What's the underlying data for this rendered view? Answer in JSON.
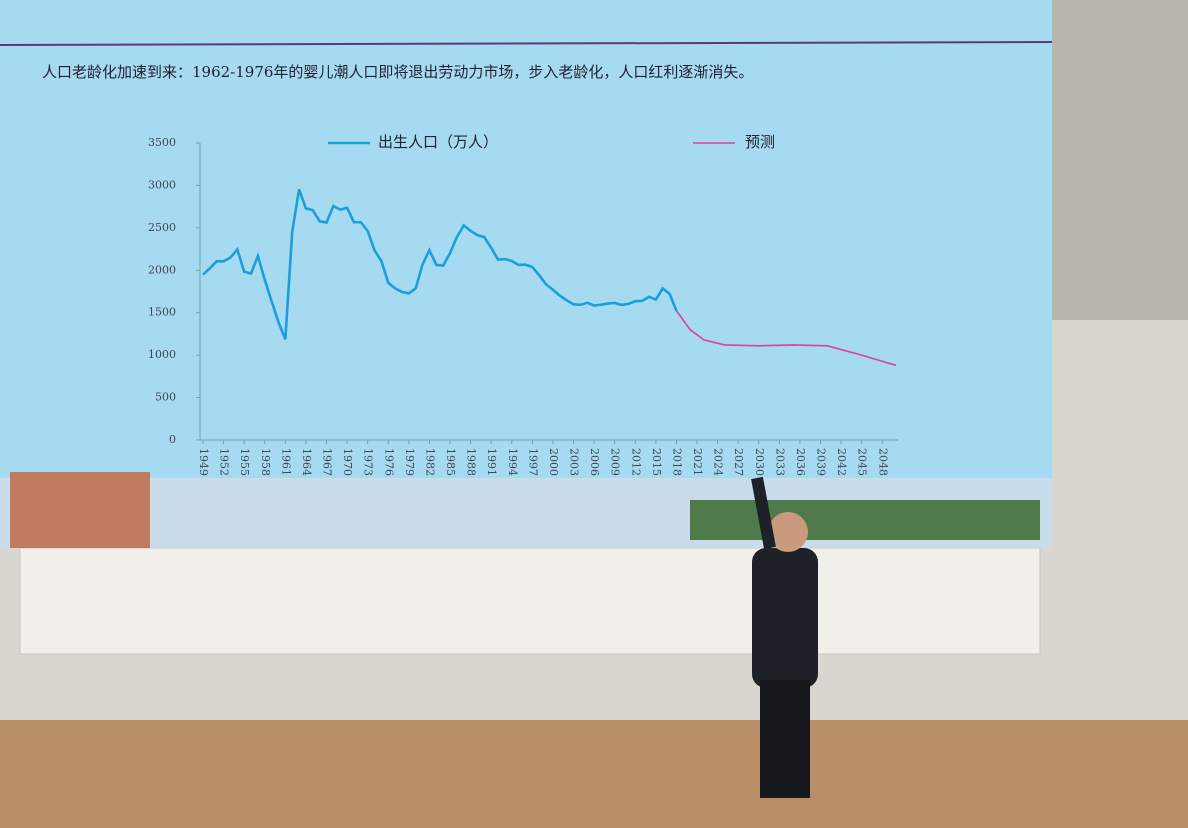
{
  "chart_data": {
    "type": "line",
    "title": "人口老龄化加速到来：1962-1976年的婴儿潮人口即将退出劳动力市场，步入老龄化，人口红利逐渐消失。",
    "xlim": [
      1949,
      2050
    ],
    "xticks": [
      1949,
      1952,
      1955,
      1958,
      1961,
      1964,
      1967,
      1970,
      1973,
      1976,
      1979,
      1982,
      1985,
      1988,
      1991,
      1994,
      1997,
      2000,
      2003,
      2006,
      2009,
      2012,
      2015,
      2018,
      2021,
      2024,
      2027,
      2030,
      2033,
      2036,
      2039,
      2042,
      2045,
      2048
    ],
    "ylim": [
      0,
      3500
    ],
    "yticks": [
      0,
      500,
      1000,
      1500,
      2000,
      2500,
      3000,
      3500
    ],
    "legend": "top",
    "series": [
      {
        "name": "出生人口（万人）",
        "color": "#1a9fdc",
        "x": [
          1949,
          1950,
          1951,
          1952,
          1953,
          1954,
          1955,
          1956,
          1957,
          1958,
          1959,
          1960,
          1961,
          1962,
          1963,
          1964,
          1965,
          1966,
          1967,
          1968,
          1969,
          1970,
          1971,
          1972,
          1973,
          1974,
          1975,
          1976,
          1977,
          1978,
          1979,
          1980,
          1981,
          1982,
          1983,
          1984,
          1985,
          1986,
          1987,
          1988,
          1989,
          1990,
          1991,
          1992,
          1993,
          1994,
          1995,
          1996,
          1997,
          1998,
          1999,
          2000,
          2001,
          2002,
          2003,
          2004,
          2005,
          2006,
          2007,
          2008,
          2009,
          2010,
          2011,
          2012,
          2013,
          2014,
          2015,
          2016,
          2017,
          2018
        ],
        "values": [
          1950,
          2023,
          2107,
          2105,
          2151,
          2245,
          1984,
          1961,
          2169,
          1889,
          1635,
          1389,
          1187,
          2451,
          2954,
          2729,
          2709,
          2577,
          2563,
          2757,
          2715,
          2736,
          2567,
          2566,
          2463,
          2235,
          2109,
          1853,
          1786,
          1745,
          1727,
          1787,
          2069,
          2237,
          2064,
          2055,
          2202,
          2391,
          2529,
          2464,
          2414,
          2391,
          2265,
          2125,
          2132,
          2110,
          2063,
          2067,
          2038,
          1942,
          1834,
          1771,
          1702,
          1647,
          1599,
          1593,
          1617,
          1585,
          1595,
          1608,
          1615,
          1592,
          1604,
          1635,
          1640,
          1687,
          1655,
          1786,
          1723,
          1523
        ]
      },
      {
        "name": "预测",
        "color": "#e0409a",
        "x": [
          2018,
          2020,
          2022,
          2025,
          2030,
          2035,
          2040,
          2045,
          2050
        ],
        "values": [
          1523,
          1300,
          1180,
          1120,
          1110,
          1120,
          1110,
          1000,
          880
        ]
      }
    ]
  }
}
